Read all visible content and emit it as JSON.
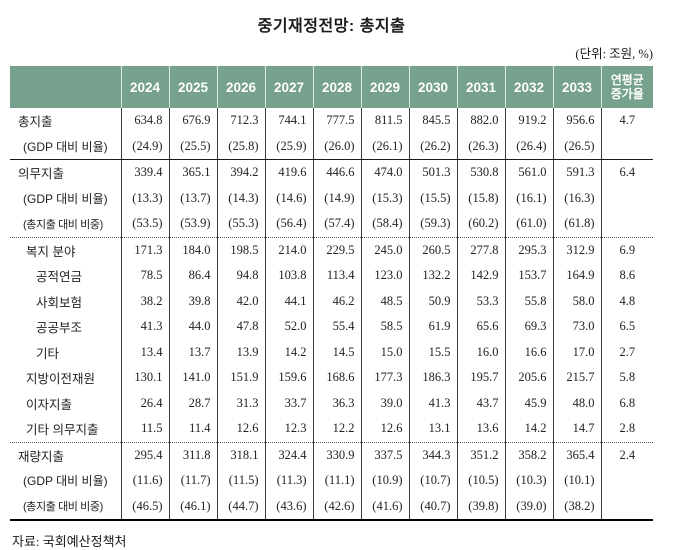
{
  "title": "중기재정전망: 총지출",
  "unit_note": "(단위: 조원, %)",
  "source": "자료: 국회예산정책처",
  "colors": {
    "header_bg": "#76A18D",
    "header_text": "#FFFFFF",
    "body_text": "#222222"
  },
  "table": {
    "year_headers": [
      "2024",
      "2025",
      "2026",
      "2027",
      "2028",
      "2029",
      "2030",
      "2031",
      "2032",
      "2033"
    ],
    "growth_header_line1": "연평균",
    "growth_header_line2": "증가율",
    "rows": [
      {
        "label": "총지출",
        "indent": "ind-0",
        "values": [
          "634.8",
          "676.9",
          "712.3",
          "744.1",
          "777.5",
          "811.5",
          "845.5",
          "882.0",
          "919.2",
          "956.6"
        ],
        "growth": "4.7",
        "border_after": ""
      },
      {
        "label": "(GDP 대비 비율)",
        "indent": "ind-p",
        "values": [
          "(24.9)",
          "(25.5)",
          "(25.8)",
          "(25.9)",
          "(26.0)",
          "(26.1)",
          "(26.2)",
          "(26.3)",
          "(26.4)",
          "(26.5)"
        ],
        "growth": "",
        "border_after": "solid"
      },
      {
        "label": "의무지출",
        "indent": "ind-0",
        "values": [
          "339.4",
          "365.1",
          "394.2",
          "419.6",
          "446.6",
          "474.0",
          "501.3",
          "530.8",
          "561.0",
          "591.3"
        ],
        "growth": "6.4",
        "border_after": ""
      },
      {
        "label": "(GDP 대비 비율)",
        "indent": "ind-p",
        "values": [
          "(13.3)",
          "(13.7)",
          "(14.3)",
          "(14.6)",
          "(14.9)",
          "(15.3)",
          "(15.5)",
          "(15.8)",
          "(16.1)",
          "(16.3)"
        ],
        "growth": "",
        "border_after": ""
      },
      {
        "label": "(총지출 대비 비중)",
        "indent": "ind-p condensed",
        "values": [
          "(53.5)",
          "(53.9)",
          "(55.3)",
          "(56.4)",
          "(57.4)",
          "(58.4)",
          "(59.3)",
          "(60.2)",
          "(61.0)",
          "(61.8)"
        ],
        "growth": "",
        "border_after": "dotted"
      },
      {
        "label": "복지 분야",
        "indent": "ind-1",
        "values": [
          "171.3",
          "184.0",
          "198.5",
          "214.0",
          "229.5",
          "245.0",
          "260.5",
          "277.8",
          "295.3",
          "312.9"
        ],
        "growth": "6.9",
        "border_after": ""
      },
      {
        "label": "공적연금",
        "indent": "ind-2",
        "values": [
          "78.5",
          "86.4",
          "94.8",
          "103.8",
          "113.4",
          "123.0",
          "132.2",
          "142.9",
          "153.7",
          "164.9"
        ],
        "growth": "8.6",
        "border_after": ""
      },
      {
        "label": "사회보험",
        "indent": "ind-2",
        "values": [
          "38.2",
          "39.8",
          "42.0",
          "44.1",
          "46.2",
          "48.5",
          "50.9",
          "53.3",
          "55.8",
          "58.0"
        ],
        "growth": "4.8",
        "border_after": ""
      },
      {
        "label": "공공부조",
        "indent": "ind-2",
        "values": [
          "41.3",
          "44.0",
          "47.8",
          "52.0",
          "55.4",
          "58.5",
          "61.9",
          "65.6",
          "69.3",
          "73.0"
        ],
        "growth": "6.5",
        "border_after": ""
      },
      {
        "label": "기타",
        "indent": "ind-2",
        "values": [
          "13.4",
          "13.7",
          "13.9",
          "14.2",
          "14.5",
          "15.0",
          "15.5",
          "16.0",
          "16.6",
          "17.0"
        ],
        "growth": "2.7",
        "border_after": ""
      },
      {
        "label": "지방이전재원",
        "indent": "ind-1",
        "values": [
          "130.1",
          "141.0",
          "151.9",
          "159.6",
          "168.6",
          "177.3",
          "186.3",
          "195.7",
          "205.6",
          "215.7"
        ],
        "growth": "5.8",
        "border_after": ""
      },
      {
        "label": "이자지출",
        "indent": "ind-1",
        "values": [
          "26.4",
          "28.7",
          "31.3",
          "33.7",
          "36.3",
          "39.0",
          "41.3",
          "43.7",
          "45.9",
          "48.0"
        ],
        "growth": "6.8",
        "border_after": ""
      },
      {
        "label": "기타 의무지출",
        "indent": "ind-1",
        "values": [
          "11.5",
          "11.4",
          "12.6",
          "12.3",
          "12.2",
          "12.6",
          "13.1",
          "13.6",
          "14.2",
          "14.7"
        ],
        "growth": "2.8",
        "border_after": "dotted"
      },
      {
        "label": "재량지출",
        "indent": "ind-0",
        "values": [
          "295.4",
          "311.8",
          "318.1",
          "324.4",
          "330.9",
          "337.5",
          "344.3",
          "351.2",
          "358.2",
          "365.4"
        ],
        "growth": "2.4",
        "border_after": ""
      },
      {
        "label": "(GDP 대비 비율)",
        "indent": "ind-p",
        "values": [
          "(11.6)",
          "(11.7)",
          "(11.5)",
          "(11.3)",
          "(11.1)",
          "(10.9)",
          "(10.7)",
          "(10.5)",
          "(10.3)",
          "(10.1)"
        ],
        "growth": "",
        "border_after": ""
      },
      {
        "label": "(총지출 대비 비중)",
        "indent": "ind-p condensed",
        "values": [
          "(46.5)",
          "(46.1)",
          "(44.7)",
          "(43.6)",
          "(42.6)",
          "(41.6)",
          "(40.7)",
          "(39.8)",
          "(39.0)",
          "(38.2)"
        ],
        "growth": "",
        "border_after": "last"
      }
    ]
  }
}
